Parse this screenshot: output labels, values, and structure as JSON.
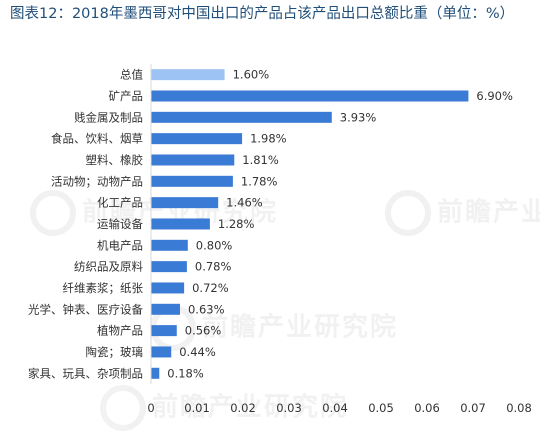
{
  "title": "图表12：2018年墨西哥对中国出口的产品占该产品出口总额比重（单位：%）",
  "watermark": "前瞻产业研究院",
  "colors": {
    "bar": "#3a7bd5",
    "bar_highlight": "#9dc3f5",
    "title": "#1f4e79",
    "text": "#333333",
    "axis": "#d9d9d9"
  },
  "chart_data": {
    "type": "bar",
    "orientation": "horizontal",
    "categories": [
      "总值",
      "矿产品",
      "贱金属及制品",
      "食品、饮料、烟草",
      "塑料、橡胶",
      "活动物；动物产品",
      "化工产品",
      "运输设备",
      "机电产品",
      "纺织品及原料",
      "纤维素浆；纸张",
      "光学、钟表、医疗设备",
      "植物产品",
      "陶瓷；玻璃",
      "家具、玩具、杂项制品"
    ],
    "values": [
      0.016,
      0.069,
      0.0393,
      0.0198,
      0.0181,
      0.0178,
      0.0146,
      0.0128,
      0.008,
      0.0078,
      0.0072,
      0.0063,
      0.0056,
      0.0044,
      0.0018
    ],
    "value_labels": [
      "1.60%",
      "6.90%",
      "3.93%",
      "1.98%",
      "1.81%",
      "1.78%",
      "1.46%",
      "1.28%",
      "0.80%",
      "0.78%",
      "0.72%",
      "0.63%",
      "0.56%",
      "0.44%",
      "0.18%"
    ],
    "highlight_index": 0,
    "xlim": [
      0,
      0.08
    ],
    "x_ticks": [
      "0",
      "0.01",
      "0.02",
      "0.03",
      "0.04",
      "0.05",
      "0.06",
      "0.07",
      "0.08"
    ],
    "grid": false,
    "legend": "none"
  }
}
